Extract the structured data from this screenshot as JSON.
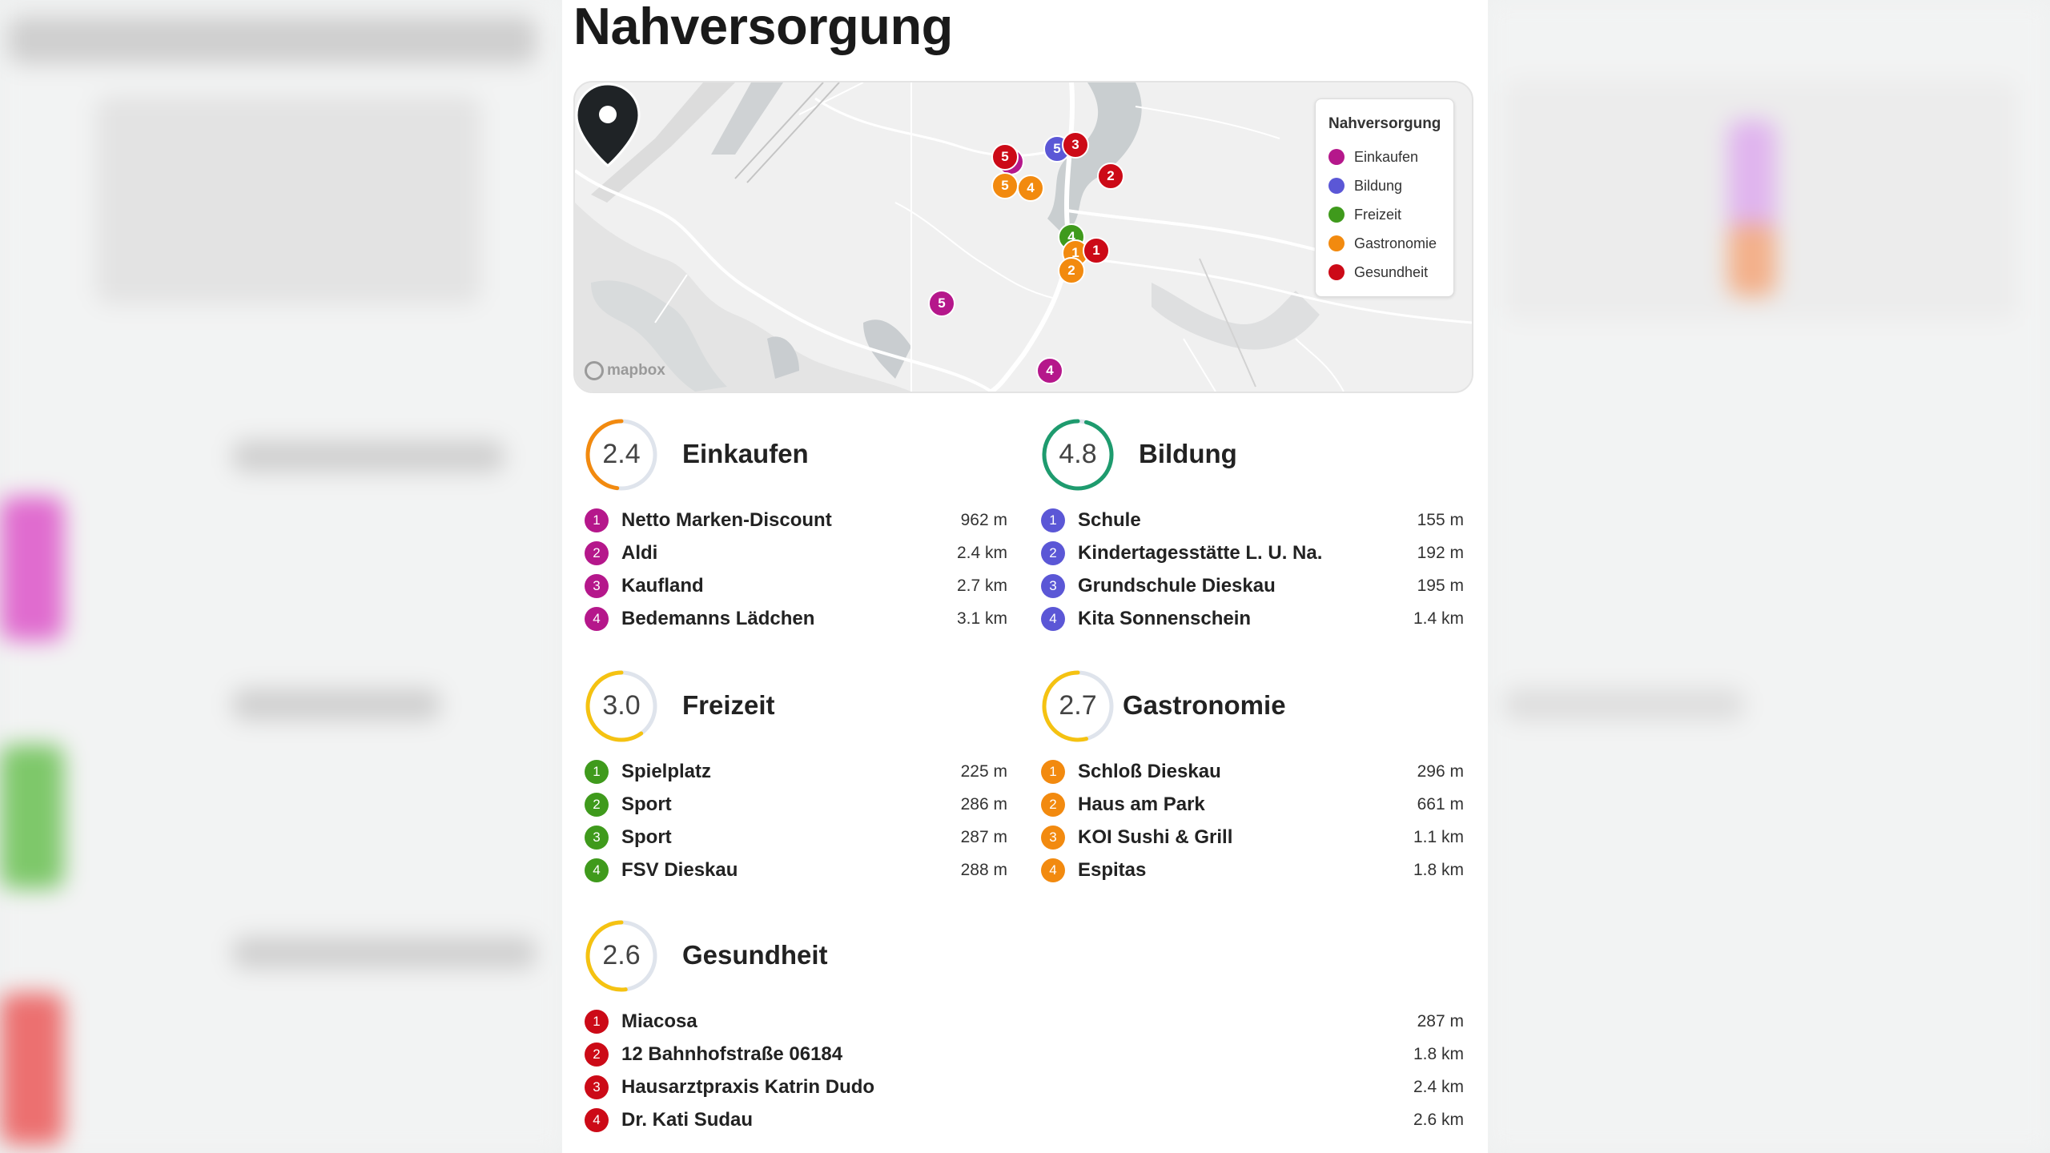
{
  "page": {
    "title": "Nahversorgung"
  },
  "colors": {
    "einkaufen": "#b5178b",
    "bildung": "#5b57d6",
    "freizeit": "#3f9a1c",
    "gastronomie": "#f28a0f",
    "gesundheit": "#cc0a17"
  },
  "map": {
    "attribution": "mapbox",
    "legend": {
      "title": "Nahversorgung",
      "items": [
        {
          "label": "Einkaufen",
          "color": "#b5178b"
        },
        {
          "label": "Bildung",
          "color": "#5b57d6"
        },
        {
          "label": "Freizeit",
          "color": "#3f9a1c"
        },
        {
          "label": "Gastronomie",
          "color": "#f28a0f"
        },
        {
          "label": "Gesundheit",
          "color": "#cc0a17"
        }
      ]
    },
    "pins": [
      {
        "label": "5",
        "category": "bildung"
      },
      {
        "label": "3",
        "category": "gesundheit"
      },
      {
        "label": "5",
        "category": "einkaufen"
      },
      {
        "label": "5",
        "category": "gesundheit"
      },
      {
        "label": "5",
        "category": "gastronomie"
      },
      {
        "label": "4",
        "category": "gastronomie"
      },
      {
        "label": "2",
        "category": "gesundheit"
      },
      {
        "label": "4",
        "category": "freizeit"
      },
      {
        "label": "1",
        "category": "gastronomie"
      },
      {
        "label": "1",
        "category": "gesundheit"
      },
      {
        "label": "2",
        "category": "gastronomie"
      },
      {
        "label": "5",
        "category": "einkaufen"
      },
      {
        "label": "4",
        "category": "einkaufen"
      }
    ]
  },
  "categories": [
    {
      "title": "Einkaufen",
      "score": "2.4",
      "score_value": 2.4,
      "color": "#b5178b",
      "gauge_color": "#f28a0f",
      "items": [
        {
          "n": "1",
          "name": "Netto Marken-Discount",
          "dist": "962 m"
        },
        {
          "n": "2",
          "name": "Aldi",
          "dist": "2.4 km"
        },
        {
          "n": "3",
          "name": "Kaufland",
          "dist": "2.7 km"
        },
        {
          "n": "4",
          "name": "Bedemanns Lädchen",
          "dist": "3.1 km"
        }
      ]
    },
    {
      "title": "Bildung",
      "score": "4.8",
      "score_value": 4.8,
      "color": "#5b57d6",
      "gauge_color": "#1e9b6e",
      "items": [
        {
          "n": "1",
          "name": "Schule",
          "dist": "155 m"
        },
        {
          "n": "2",
          "name": "Kindertagesstätte L. U. Na.",
          "dist": "192 m"
        },
        {
          "n": "3",
          "name": "Grundschule Dieskau",
          "dist": "195 m"
        },
        {
          "n": "4",
          "name": "Kita Sonnenschein",
          "dist": "1.4 km"
        }
      ]
    },
    {
      "title": "Freizeit",
      "score": "3.0",
      "score_value": 3.0,
      "color": "#3f9a1c",
      "gauge_color": "#f5c211",
      "items": [
        {
          "n": "1",
          "name": "Spielplatz",
          "dist": "225 m"
        },
        {
          "n": "2",
          "name": "Sport",
          "dist": "286 m"
        },
        {
          "n": "3",
          "name": "Sport",
          "dist": "287 m"
        },
        {
          "n": "4",
          "name": "FSV Dieskau",
          "dist": "288 m"
        }
      ]
    },
    {
      "title": "Gastronomie",
      "score": "2.7",
      "score_value": 2.7,
      "color": "#f28a0f",
      "gauge_color": "#f5c211",
      "items": [
        {
          "n": "1",
          "name": "Schloß Dieskau",
          "dist": "296 m"
        },
        {
          "n": "2",
          "name": "Haus am Park",
          "dist": "661 m"
        },
        {
          "n": "3",
          "name": "KOI Sushi & Grill",
          "dist": "1.1 km"
        },
        {
          "n": "4",
          "name": "Espitas",
          "dist": "1.8 km"
        }
      ]
    },
    {
      "title": "Gesundheit",
      "score": "2.6",
      "score_value": 2.6,
      "color": "#cc0a17",
      "gauge_color": "#f5c211",
      "items": [
        {
          "n": "1",
          "name": "Miacosa",
          "dist": "287 m"
        },
        {
          "n": "2",
          "name": "12 Bahnhofstraße 06184",
          "dist": "1.8 km"
        },
        {
          "n": "3",
          "name": "Hausarztpraxis Katrin Dudo",
          "dist": "2.4 km"
        },
        {
          "n": "4",
          "name": "Dr. Kati Sudau",
          "dist": "2.6 km"
        }
      ]
    }
  ]
}
